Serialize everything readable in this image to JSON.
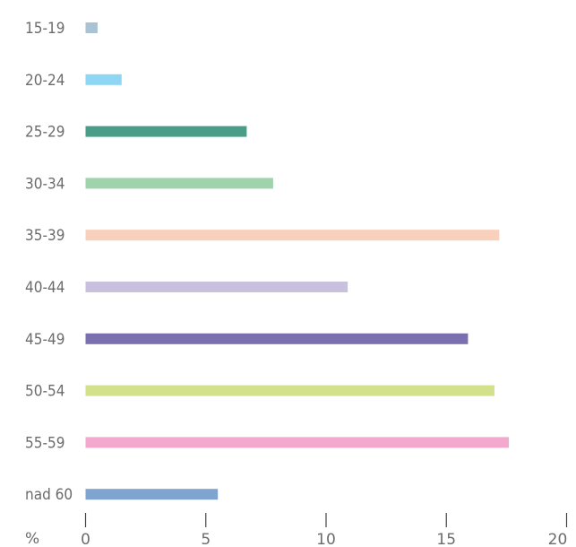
{
  "chart_data": {
    "type": "bar",
    "orientation": "horizontal",
    "categories": [
      "15-19",
      "20-24",
      "25-29",
      "30-34",
      "35-39",
      "40-44",
      "45-49",
      "50-54",
      "55-59",
      "nad 60"
    ],
    "values": [
      0.5,
      1.5,
      6.7,
      7.8,
      17.2,
      10.9,
      15.9,
      17.0,
      17.6,
      5.5
    ],
    "colors": [
      "#a9c3d4",
      "#8fd6f4",
      "#4a9e87",
      "#9fd3ac",
      "#f8d0bc",
      "#c7c1df",
      "#7a6faf",
      "#d3e18b",
      "#f3a8cd",
      "#7fa4cf"
    ],
    "xticks": [
      0,
      5,
      10,
      15,
      20
    ],
    "xlim": [
      0,
      20
    ],
    "xlabel": "%",
    "title": "",
    "ylabel": "",
    "legend": "none",
    "grid": false
  }
}
